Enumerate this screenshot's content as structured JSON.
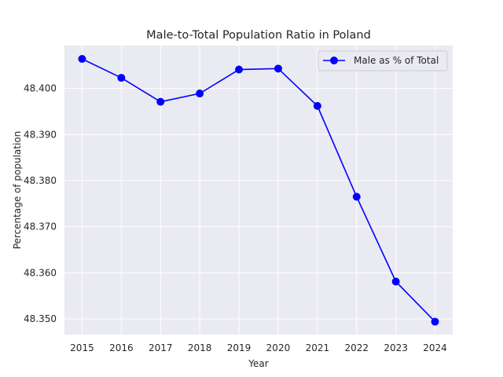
{
  "chart_data": {
    "type": "line",
    "title": "Male-to-Total Population Ratio in Poland",
    "xlabel": "Year",
    "ylabel": "Percentage of population",
    "x": [
      2015,
      2016,
      2017,
      2018,
      2019,
      2020,
      2021,
      2022,
      2023,
      2024
    ],
    "series": [
      {
        "name": "Male as % of Total",
        "color": "#0000ff",
        "marker": "circle",
        "values": [
          48.4064,
          48.4023,
          48.3971,
          48.3989,
          48.4041,
          48.4043,
          48.3962,
          48.3765,
          48.3581,
          48.3494
        ]
      }
    ],
    "xlim": [
      2014.55,
      2024.45
    ],
    "ylim": [
      48.3466,
      48.4093
    ],
    "yticks": [
      48.35,
      48.36,
      48.37,
      48.38,
      48.39,
      48.4
    ],
    "ytick_labels": [
      "48.350",
      "48.360",
      "48.370",
      "48.380",
      "48.390",
      "48.400"
    ],
    "xtick_labels": [
      "2015",
      "2016",
      "2017",
      "2018",
      "2019",
      "2020",
      "2021",
      "2022",
      "2023",
      "2024"
    ],
    "grid": true,
    "background": "#eaeaf2",
    "legend_position": "upper-right"
  }
}
